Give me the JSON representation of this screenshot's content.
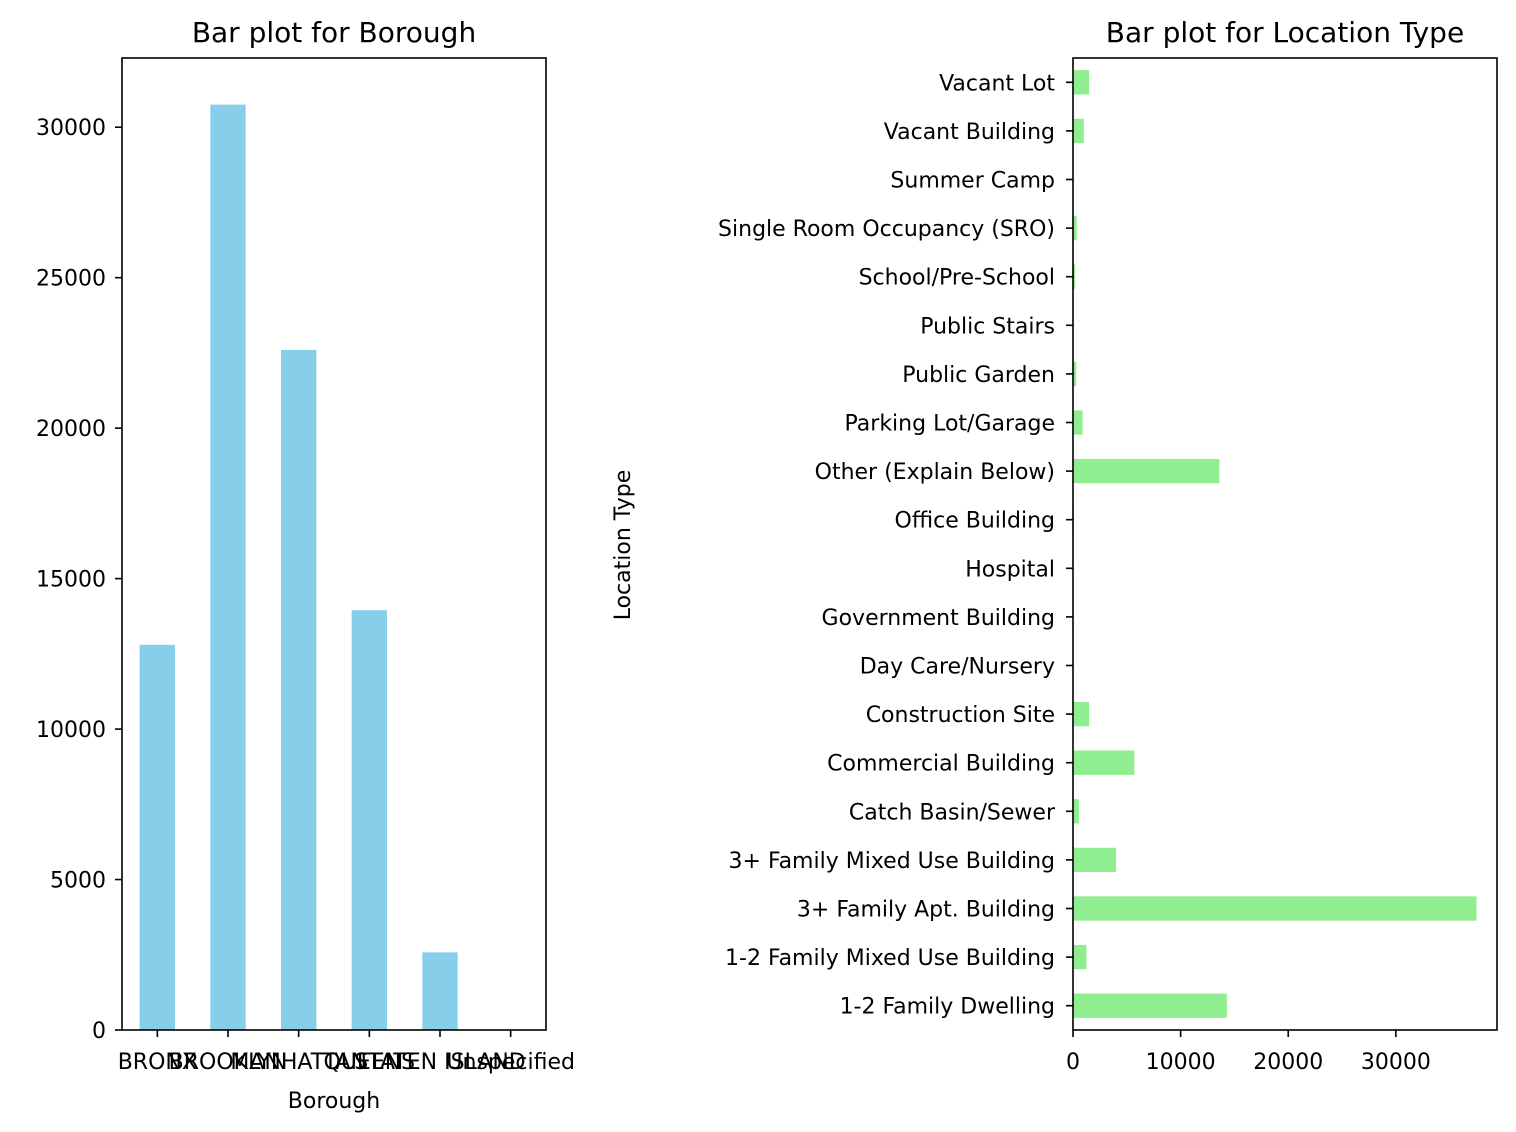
{
  "chart_data": [
    {
      "type": "bar",
      "title": "Bar plot for Borough",
      "xlabel": "Borough",
      "ylabel": "",
      "categories": [
        "BRONX",
        "BROOKLYN",
        "MANHATTAN",
        "QUEENS",
        "STATEN ISLAND",
        "Unspecified"
      ],
      "values": [
        12800,
        30750,
        22600,
        13950,
        2580,
        0
      ],
      "ylim": [
        0,
        32300
      ],
      "yticks": [
        0,
        5000,
        10000,
        15000,
        20000,
        25000,
        30000
      ],
      "color": "#87ceeb",
      "grid": false
    },
    {
      "type": "bar",
      "orientation": "horizontal",
      "title": "Bar plot for Location Type",
      "xlabel": "",
      "ylabel": "Location Type",
      "categories": [
        "1-2 Family Dwelling",
        "1-2 Family Mixed Use Building",
        "3+ Family Apt. Building",
        "3+ Family Mixed Use Building",
        "Catch Basin/Sewer",
        "Commercial Building",
        "Construction Site",
        "Day Care/Nursery",
        "Government Building",
        "Hospital",
        "Office Building",
        "Other (Explain Below)",
        "Parking Lot/Garage",
        "Public Garden",
        "Public Stairs",
        "School/Pre-School",
        "Single Room Occupancy (SRO)",
        "Summer Camp",
        "Vacant Building",
        "Vacant Lot"
      ],
      "values": [
        14300,
        1250,
        37500,
        4000,
        550,
        5700,
        1500,
        40,
        50,
        30,
        80,
        13600,
        900,
        300,
        20,
        200,
        350,
        10,
        1000,
        1500
      ],
      "xlim": [
        0,
        39400
      ],
      "xticks": [
        0,
        10000,
        20000,
        30000
      ],
      "color": "#90ee90",
      "grid": false
    }
  ]
}
